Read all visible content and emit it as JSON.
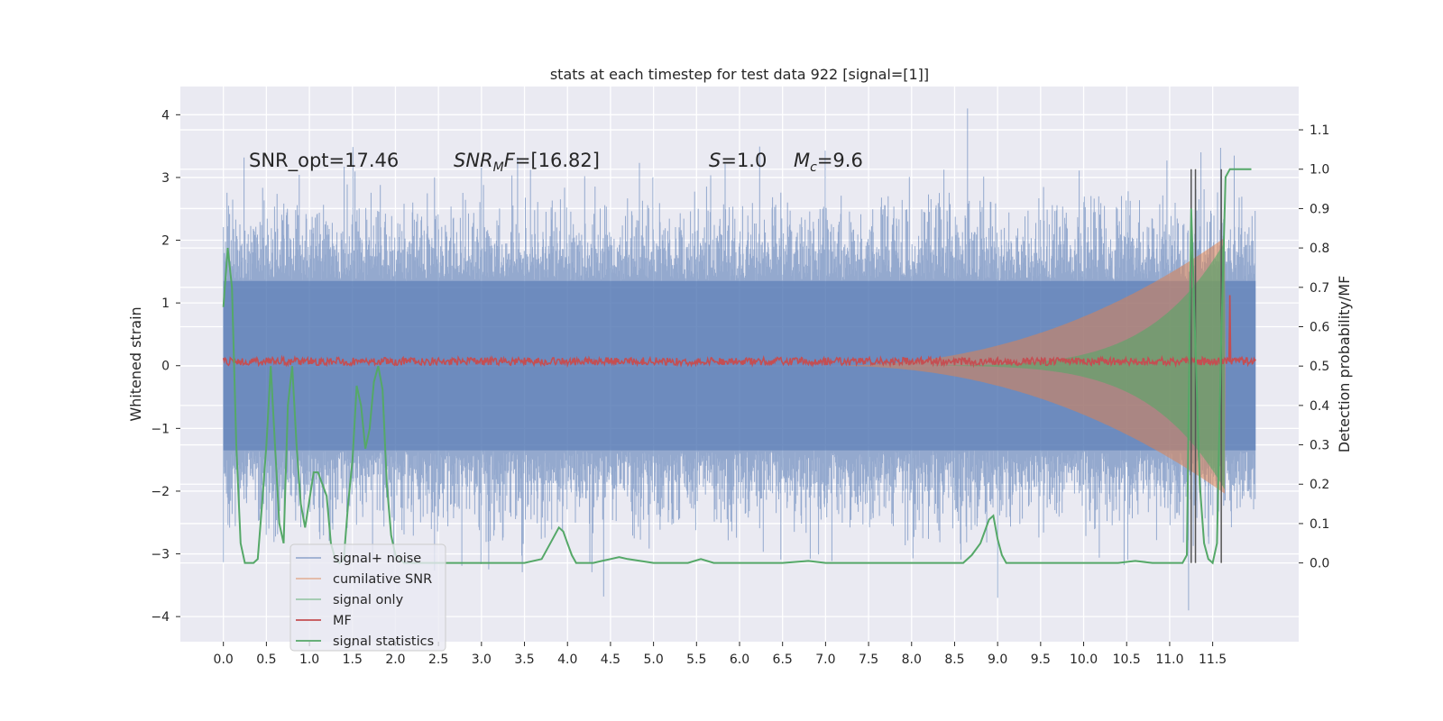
{
  "chart_data": {
    "type": "line",
    "title": "stats at each timestep for test data 922 [signal=[1]]",
    "xlabel": "",
    "ylabel": "Whitened strain",
    "y2label": "Detection probability/MF",
    "xlim": [
      -0.5,
      12.5
    ],
    "ylim": [
      -4.4,
      4.45
    ],
    "y2lim": [
      -0.2,
      1.21
    ],
    "grid": true,
    "legend_position": "lower-left",
    "x_ticks": [
      "0.0",
      "0.5",
      "1.0",
      "1.5",
      "2.0",
      "2.5",
      "3.0",
      "3.5",
      "4.0",
      "4.5",
      "5.0",
      "5.5",
      "6.0",
      "6.5",
      "7.0",
      "7.5",
      "8.0",
      "8.5",
      "9.0",
      "9.5",
      "10.0",
      "10.5",
      "11.0",
      "11.5"
    ],
    "y_ticks": [
      "4",
      "3",
      "2",
      "1",
      "0",
      "−1",
      "−2",
      "−3",
      "−4"
    ],
    "y2_ticks": [
      "1.1",
      "1.0",
      "0.9",
      "0.8",
      "0.7",
      "0.6",
      "0.5",
      "0.4",
      "0.3",
      "0.2",
      "0.1",
      "0.0"
    ],
    "annotations": {
      "snr_opt": "SNR_opt=17.46",
      "snr_mf": "SNR_MF=[16.82]",
      "s_value": "S=1.0",
      "mc_value": "M_c=9.6"
    },
    "colors": {
      "signal_noise": "#4c72b0",
      "cumulative_snr": "#dd8452",
      "signal_only": "#55a868",
      "mf": "#c44e52",
      "signal_statistics": "#55a868",
      "vlines": "#555555",
      "axes_bg": "#eaeaf2"
    },
    "series": [
      {
        "name": "signal+ noise",
        "axis": "left",
        "description_values": {
          "x_range": [
            0,
            12.0
          ],
          "band_core": 1.35,
          "typical_peak": 2.6,
          "max_peak": 4.1,
          "min_peak": -3.7
        }
      },
      {
        "name": "cumilative SNR",
        "axis": "left",
        "description_values": {
          "x_start": 7.0,
          "x_end": 11.65,
          "final_amplitude": 2.05
        }
      },
      {
        "name": "signal only",
        "axis": "left",
        "description_values": {
          "x_start": 7.0,
          "x_end": 11.65,
          "final_amplitude": 2.0
        }
      },
      {
        "name": "MF",
        "axis": "right",
        "description_values": {
          "baseline": 0.51,
          "spike_x": 11.7,
          "spike_y": 0.68
        }
      },
      {
        "name": "signal statistics",
        "axis": "right",
        "x": [
          0.0,
          0.05,
          0.1,
          0.15,
          0.2,
          0.25,
          0.3,
          0.35,
          0.4,
          0.45,
          0.5,
          0.55,
          0.6,
          0.65,
          0.7,
          0.75,
          0.8,
          0.85,
          0.9,
          0.95,
          1.0,
          1.05,
          1.1,
          1.15,
          1.2,
          1.25,
          1.3,
          1.35,
          1.4,
          1.45,
          1.5,
          1.55,
          1.6,
          1.65,
          1.7,
          1.75,
          1.8,
          1.85,
          1.9,
          1.95,
          2.0,
          2.05,
          2.1,
          2.15,
          2.2,
          2.3,
          2.5,
          3.0,
          3.5,
          3.7,
          3.8,
          3.9,
          3.95,
          4.0,
          4.05,
          4.1,
          4.2,
          4.3,
          4.4,
          4.5,
          4.6,
          4.7,
          5.0,
          5.4,
          5.55,
          5.7,
          5.9,
          6.5,
          6.8,
          7.0,
          7.5,
          8.0,
          8.6,
          8.7,
          8.8,
          8.9,
          8.95,
          9.0,
          9.05,
          9.1,
          9.2,
          9.5,
          10.0,
          10.4,
          10.6,
          10.8,
          11.0,
          11.15,
          11.2,
          11.25,
          11.3,
          11.35,
          11.4,
          11.45,
          11.5,
          11.55,
          11.6,
          11.65,
          11.7,
          11.75,
          11.8,
          11.9,
          11.95
        ],
        "values": [
          0.65,
          0.8,
          0.7,
          0.3,
          0.05,
          0.0,
          0.0,
          0.0,
          0.01,
          0.15,
          0.3,
          0.5,
          0.3,
          0.1,
          0.05,
          0.4,
          0.5,
          0.3,
          0.15,
          0.09,
          0.16,
          0.23,
          0.23,
          0.2,
          0.17,
          0.05,
          0.01,
          0.0,
          0.01,
          0.15,
          0.26,
          0.45,
          0.4,
          0.29,
          0.34,
          0.46,
          0.5,
          0.44,
          0.2,
          0.07,
          0.02,
          0.01,
          0.0,
          0.0,
          0.0,
          0.0,
          0.0,
          0.0,
          0.0,
          0.01,
          0.05,
          0.09,
          0.08,
          0.05,
          0.02,
          0.0,
          0.0,
          0.0,
          0.005,
          0.01,
          0.015,
          0.01,
          0.0,
          0.0,
          0.01,
          0.0,
          0.0,
          0.0,
          0.005,
          0.0,
          0.0,
          0.0,
          0.0,
          0.02,
          0.05,
          0.11,
          0.12,
          0.06,
          0.02,
          0.0,
          0.0,
          0.0,
          0.0,
          0.0,
          0.005,
          0.0,
          0.0,
          0.0,
          0.02,
          0.9,
          0.55,
          0.2,
          0.05,
          0.01,
          0.0,
          0.05,
          0.58,
          0.98,
          1.0,
          1.0,
          1.0,
          1.0,
          1.0
        ]
      }
    ],
    "vlines_x": [
      11.25,
      11.3,
      11.6
    ]
  }
}
